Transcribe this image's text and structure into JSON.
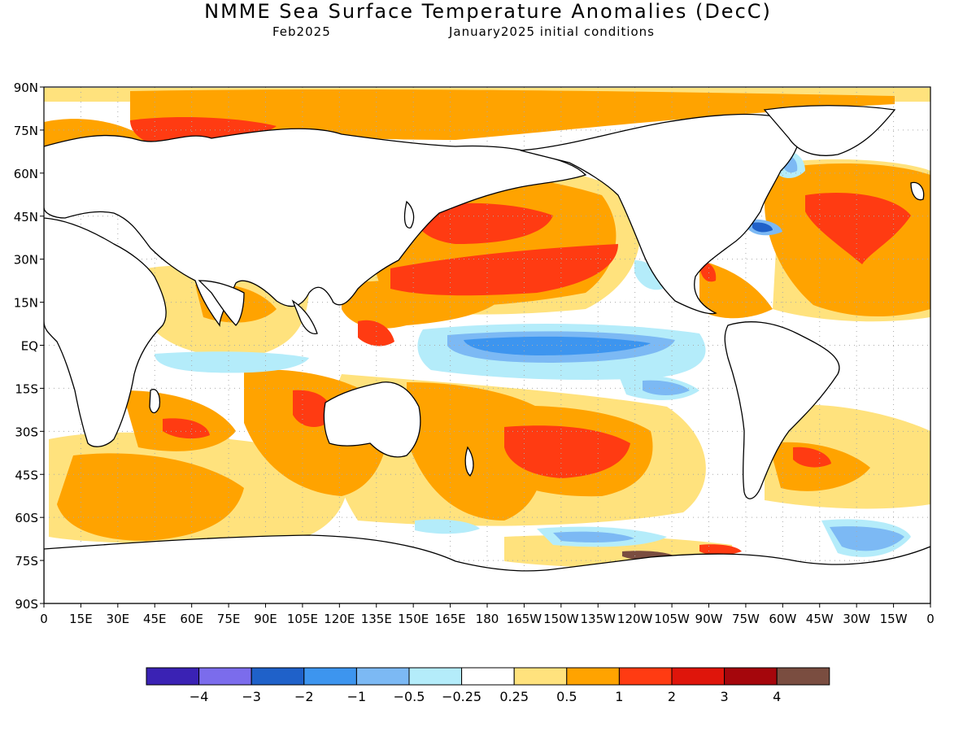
{
  "header": {
    "title": "NMME Sea Surface Temperature Anomalies (DecC)",
    "valid_month": "Feb2025",
    "init_conditions": "January2025 initial conditions"
  },
  "axes": {
    "lat_labels": [
      "90N",
      "75N",
      "60N",
      "45N",
      "30N",
      "15N",
      "EQ",
      "15S",
      "30S",
      "45S",
      "60S",
      "75S",
      "90S"
    ],
    "lon_labels": [
      "0",
      "15E",
      "30E",
      "45E",
      "60E",
      "75E",
      "90E",
      "105E",
      "120E",
      "135E",
      "150E",
      "165E",
      "180",
      "165W",
      "150W",
      "135W",
      "120W",
      "105W",
      "90W",
      "75W",
      "60W",
      "45W",
      "30W",
      "15W",
      "0"
    ]
  },
  "legend": {
    "colors": [
      "#3a22b4",
      "#7b6cec",
      "#1f61c9",
      "#3d95ef",
      "#7cb9f4",
      "#b4ecfa",
      "#ffffff",
      "#ffe27d",
      "#ffa300",
      "#ff3b12",
      "#df150b",
      "#a5060c",
      "#7a4d40"
    ],
    "labels": [
      "−4",
      "−3",
      "−2",
      "−1",
      "−0.5",
      "−0.25",
      "0.25",
      "0.5",
      "1",
      "2",
      "3",
      "4"
    ]
  },
  "palette": {
    "land_outline": "#000000",
    "frame": "#000000",
    "grid": "#aaaaaa"
  }
}
